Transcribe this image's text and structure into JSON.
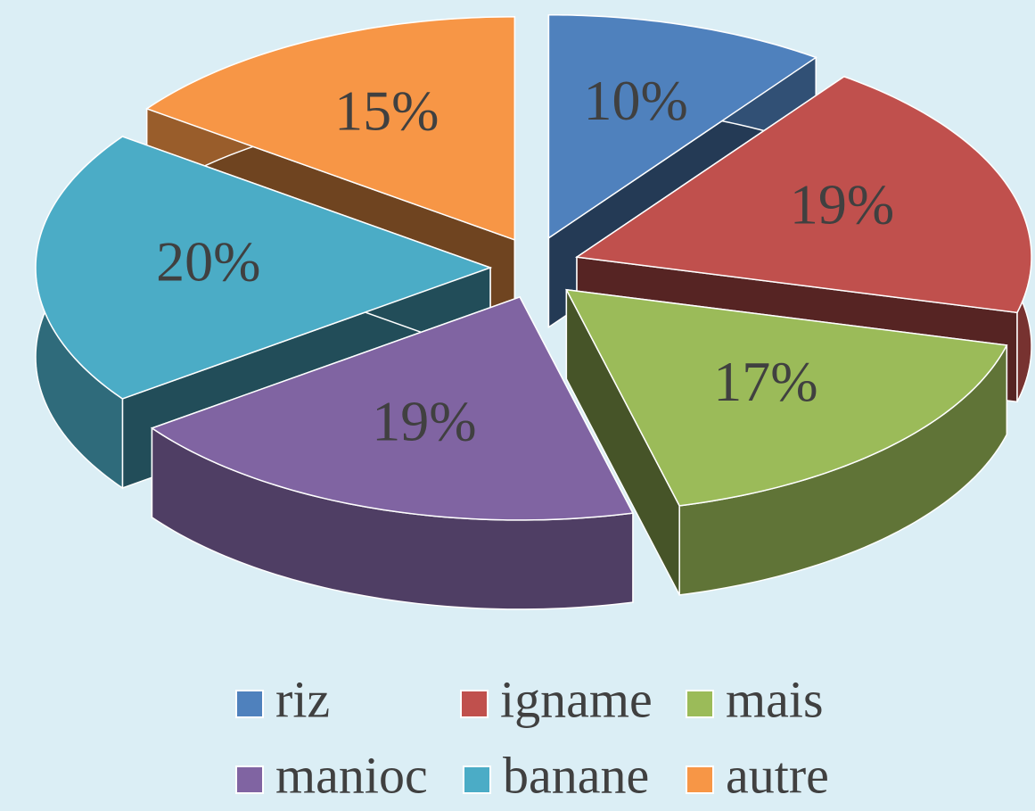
{
  "chart_data": {
    "type": "pie3d",
    "categories": [
      "riz",
      "igname",
      "mais",
      "manioc",
      "banane",
      "autre"
    ],
    "values": [
      10,
      19,
      17,
      19,
      20,
      15
    ],
    "value_labels": [
      "10%",
      "19%",
      "17%",
      "19%",
      "20%",
      "15%"
    ],
    "colors": [
      "#4f81bd",
      "#c0504d",
      "#9bbb59",
      "#8064a2",
      "#4bacc6",
      "#f79646"
    ],
    "legend": "bottom"
  }
}
